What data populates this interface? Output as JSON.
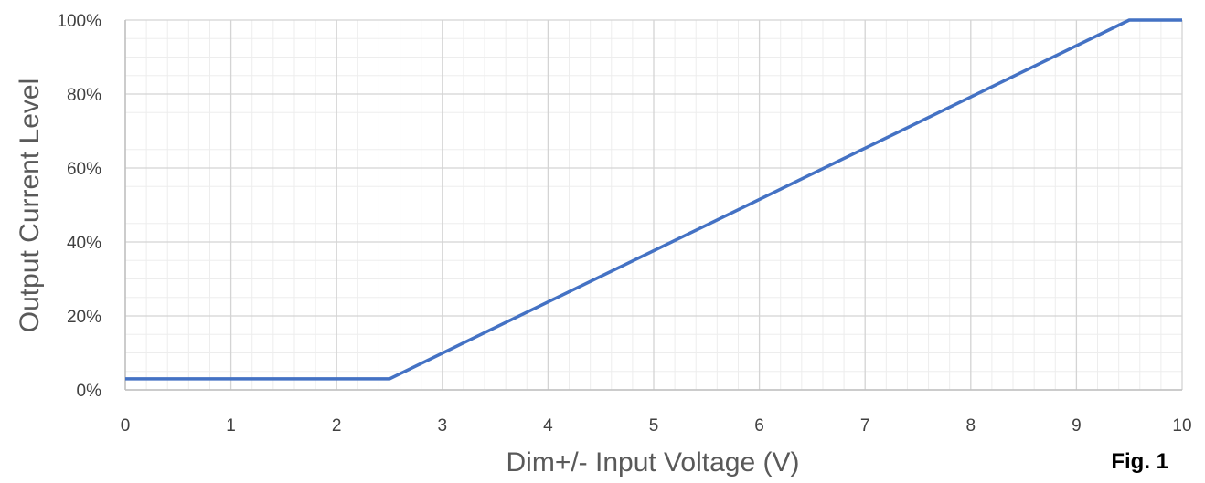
{
  "chart_data": {
    "type": "line",
    "title": "",
    "xlabel": "Dim+/- Input Voltage (V)",
    "ylabel": "Output Current Level",
    "xlim": [
      0,
      10
    ],
    "ylim": [
      0,
      100
    ],
    "x_ticks": [
      0,
      1,
      2,
      3,
      4,
      5,
      6,
      7,
      8,
      9,
      10
    ],
    "y_ticks": [
      0,
      20,
      40,
      60,
      80,
      100
    ],
    "x_tick_labels": [
      "0",
      "1",
      "2",
      "3",
      "4",
      "5",
      "6",
      "7",
      "8",
      "9",
      "10"
    ],
    "y_tick_labels": [
      "0%",
      "20%",
      "40%",
      "60%",
      "80%",
      "100%"
    ],
    "grid": true,
    "minor_grid": true,
    "series": [
      {
        "color": "#4472C4",
        "points": [
          {
            "x": 0,
            "y": 3
          },
          {
            "x": 2.5,
            "y": 3
          },
          {
            "x": 9.5,
            "y": 100
          },
          {
            "x": 10,
            "y": 100
          }
        ]
      }
    ],
    "annotation": "Fig. 1"
  }
}
